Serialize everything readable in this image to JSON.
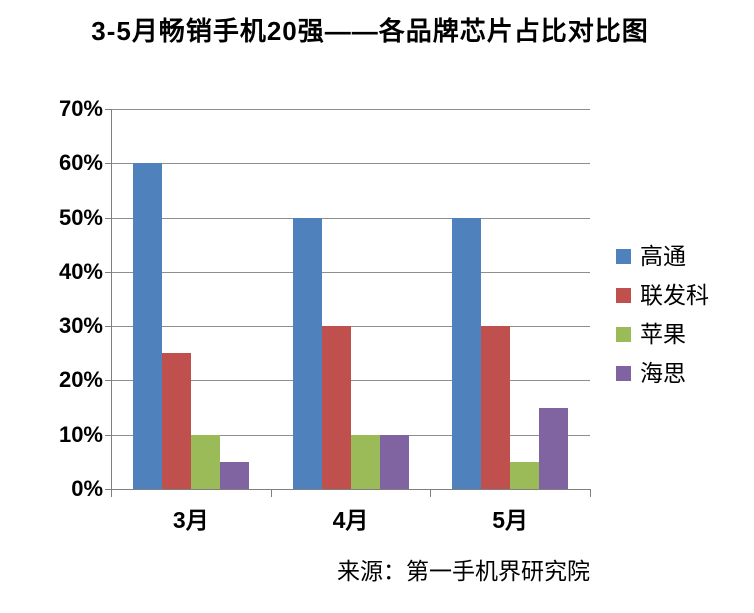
{
  "page": {
    "title": "3-5月畅销手机20强——各品牌芯片占比对比图",
    "source_note": "来源：第一手机界研究院"
  },
  "chart_data": {
    "type": "bar",
    "title": "3-5月畅销手机20强——各品牌芯片占比对比图",
    "categories": [
      "3月",
      "4月",
      "5月"
    ],
    "series": [
      {
        "name": "高通",
        "color": "#4F81BD",
        "values": [
          60,
          50,
          50
        ]
      },
      {
        "name": "联发科",
        "color": "#C0504D",
        "values": [
          25,
          30,
          30
        ]
      },
      {
        "name": "苹果",
        "color": "#9BBB59",
        "values": [
          10,
          10,
          5
        ]
      },
      {
        "name": "海思",
        "color": "#8064A2",
        "values": [
          5,
          10,
          15
        ]
      }
    ],
    "xlabel": "",
    "ylabel": "",
    "ylim": [
      0,
      70
    ],
    "ytick_step": 10,
    "ytick_labels": [
      "0%",
      "10%",
      "20%",
      "30%",
      "40%",
      "50%",
      "60%",
      "70%"
    ],
    "grid": true,
    "legend_position": "right",
    "source_note": "来源：第一手机界研究院",
    "colors": {
      "gridline": "#8E8E8E",
      "axis": "#7F7F7F",
      "text": "#000000",
      "background": "#FFFFFF"
    }
  }
}
